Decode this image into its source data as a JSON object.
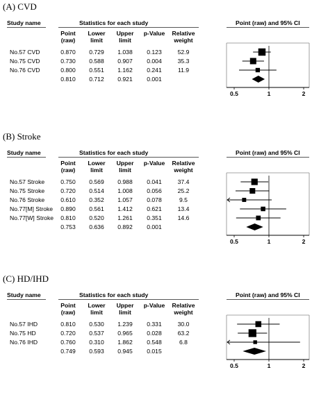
{
  "chart_data": [
    {
      "type": "table",
      "panel_title": "(A) CVD",
      "headers": {
        "study": "Study name",
        "stats": "Statistics for each study",
        "plot": "Point (raw) and 95% CI",
        "cols": [
          [
            "Point",
            "(raw)"
          ],
          [
            "Lower",
            "limit"
          ],
          [
            "Upper",
            "limit"
          ],
          [
            "p-Value",
            ""
          ],
          [
            "Relative",
            "weight"
          ]
        ]
      },
      "rows": [
        {
          "name": "No.57 CVD",
          "point": "0.870",
          "lower": "0.729",
          "upper": "1.038",
          "p": "0.123",
          "weight": "52.9"
        },
        {
          "name": "No.75 CVD",
          "point": "0.730",
          "lower": "0.588",
          "upper": "0.907",
          "p": "0.004",
          "weight": "35.3"
        },
        {
          "name": "No.76 CVD",
          "point": "0.800",
          "lower": "0.551",
          "upper": "1.162",
          "p": "0.241",
          "weight": "11.9"
        },
        {
          "name": "",
          "point": "0.810",
          "lower": "0.712",
          "upper": "0.921",
          "p": "0.001",
          "weight": "",
          "summary": true
        }
      ],
      "axis": {
        "min": 0.5,
        "max": 2,
        "ticks": [
          "0.5",
          "1",
          "2"
        ],
        "scale": "log"
      }
    },
    {
      "type": "table",
      "panel_title": "(B) Stroke",
      "headers": {
        "study": "Study name",
        "stats": "Statistics for each study",
        "plot": "Point (raw) and 95% CI",
        "cols": [
          [
            "Point",
            "(raw)"
          ],
          [
            "Lower",
            "limit"
          ],
          [
            "Upper",
            "limit"
          ],
          [
            "p-Value",
            ""
          ],
          [
            "Relative",
            "weight"
          ]
        ]
      },
      "rows": [
        {
          "name": "No.57 Stroke",
          "point": "0.750",
          "lower": "0.569",
          "upper": "0.988",
          "p": "0.041",
          "weight": "37.4"
        },
        {
          "name": "No.75 Stroke",
          "point": "0.720",
          "lower": "0.514",
          "upper": "1.008",
          "p": "0.056",
          "weight": "25.2"
        },
        {
          "name": "No.76 Stroke",
          "point": "0.610",
          "lower": "0.352",
          "upper": "1.057",
          "p": "0.078",
          "weight": "9.5"
        },
        {
          "name": "No.77[M] Stroke",
          "point": "0.890",
          "lower": "0.561",
          "upper": "1.412",
          "p": "0.621",
          "weight": "13.4"
        },
        {
          "name": "No.77[W] Stroke",
          "point": "0.810",
          "lower": "0.520",
          "upper": "1.261",
          "p": "0.351",
          "weight": "14.6"
        },
        {
          "name": "",
          "point": "0.753",
          "lower": "0.636",
          "upper": "0.892",
          "p": "0.001",
          "weight": "",
          "summary": true
        }
      ],
      "axis": {
        "min": 0.5,
        "max": 2,
        "ticks": [
          "0.5",
          "1",
          "2"
        ],
        "scale": "log"
      }
    },
    {
      "type": "table",
      "panel_title": "(C) HD/IHD",
      "headers": {
        "study": "Study name",
        "stats": "Statistics for each study",
        "plot": "Point (raw) and 95% CI",
        "cols": [
          [
            "Point",
            "(raw)"
          ],
          [
            "Lower",
            "limit"
          ],
          [
            "Upper",
            "limit"
          ],
          [
            "p-Value",
            ""
          ],
          [
            "Relative",
            "weight"
          ]
        ]
      },
      "rows": [
        {
          "name": "No.57 IHD",
          "point": "0.810",
          "lower": "0.530",
          "upper": "1.239",
          "p": "0.331",
          "weight": "30.0"
        },
        {
          "name": "No.75 HD",
          "point": "0.720",
          "lower": "0.537",
          "upper": "0.965",
          "p": "0.028",
          "weight": "63.2"
        },
        {
          "name": "No.76 IHD",
          "point": "0.760",
          "lower": "0.310",
          "upper": "1.862",
          "p": "0.548",
          "weight": "6.8"
        },
        {
          "name": "",
          "point": "0.749",
          "lower": "0.593",
          "upper": "0.945",
          "p": "0.015",
          "weight": "",
          "summary": true
        }
      ],
      "axis": {
        "min": 0.5,
        "max": 2,
        "ticks": [
          "0.5",
          "1",
          "2"
        ],
        "scale": "log"
      }
    }
  ]
}
